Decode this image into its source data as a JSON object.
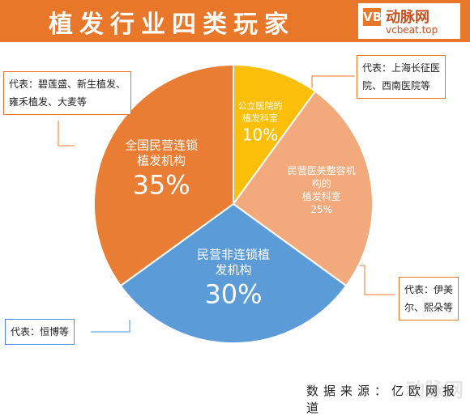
{
  "title": "植发行业四类玩家",
  "logo": {
    "mark": "VB",
    "cn": "动脉网",
    "en": "vcbeat.top"
  },
  "chart_data": {
    "type": "pie",
    "slices": [
      {
        "name": "公立医院的植发科室",
        "lines": [
          "公立医院的",
          "植发科室"
        ],
        "value": 10,
        "label": "10%",
        "color": "#fbbf0a"
      },
      {
        "name": "民营医美整容机构的植发科室",
        "lines": [
          "民营医美整容机",
          "构的",
          "植发科室"
        ],
        "value": 25,
        "label": "25%",
        "color": "#f2a97c"
      },
      {
        "name": "民营非连锁植发机构",
        "lines": [
          "民营非连锁植",
          "发机构"
        ],
        "value": 30,
        "label": "30%",
        "color": "#5b9bd8"
      },
      {
        "name": "全国民营连锁植发机构",
        "lines": [
          "全国民营连锁",
          "植发机构"
        ],
        "value": 35,
        "label": "35%",
        "color": "#ea7d34"
      }
    ]
  },
  "notes": {
    "chain": [
      "代表：碧莲盛、新生植发、",
      "雍禾植发、大麦等"
    ],
    "public": [
      "代表：上海长征医",
      "院、西南医院等"
    ],
    "aesthetic": [
      "代表：伊美",
      "尔、熙朵等"
    ],
    "nonchain": [
      "代表：恒博等"
    ]
  },
  "source": "数据来源：亿欧网报道",
  "watermark": "动脉网"
}
